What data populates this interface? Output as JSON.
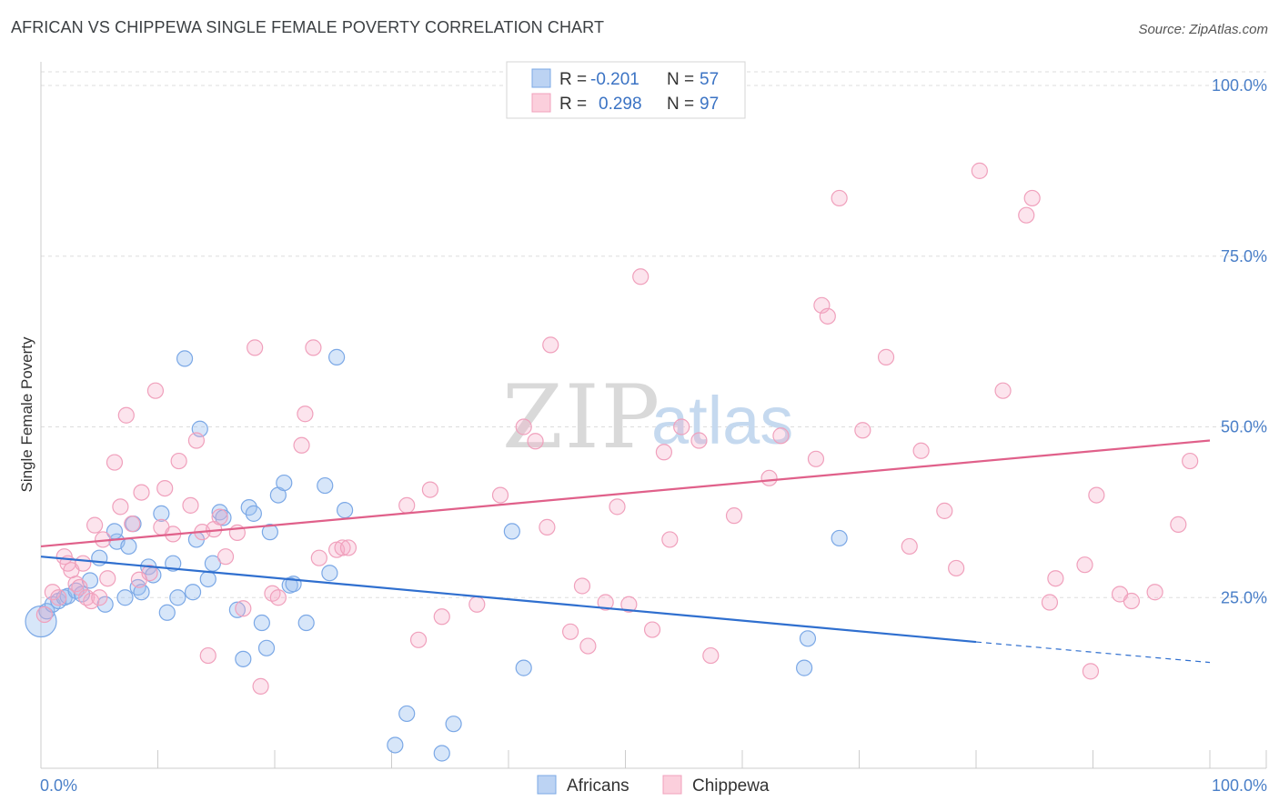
{
  "title": "AFRICAN VS CHIPPEWA SINGLE FEMALE POVERTY CORRELATION CHART",
  "source": "Source: ZipAtlas.com",
  "watermark": {
    "zip": "ZIP",
    "atlas": "atlas"
  },
  "legend": {
    "r_label": "R =",
    "n_label": "N =",
    "entries": [
      {
        "r": "-0.201",
        "n": "57"
      },
      {
        "r": "0.298",
        "n": "97"
      }
    ]
  },
  "chart_data": {
    "type": "scatter",
    "title": "AFRICAN VS CHIPPEWA SINGLE FEMALE POVERTY CORRELATION CHART",
    "xlabel": "",
    "ylabel": "Single Female Poverty",
    "xlim": [
      0,
      100
    ],
    "ylim": [
      0,
      100
    ],
    "x_tick_labels": [
      "0.0%",
      "100.0%"
    ],
    "y_tick_values": [
      25,
      50,
      75,
      100
    ],
    "y_tick_labels": [
      "25.0%",
      "50.0%",
      "75.0%",
      "100.0%"
    ],
    "colors": {
      "Africans": "#7ba8e6",
      "Chippewa": "#f0a0bc",
      "Africans_line": "#2f6fcf",
      "Chippewa_line": "#e0608a"
    },
    "series": [
      {
        "name": "Africans",
        "trend": {
          "x0": 0,
          "y0": 31.0,
          "x1": 80,
          "y1": 18.5,
          "dash_x1": 100,
          "dash_y1": 15.5
        },
        "points": [
          [
            0,
            21.5
          ],
          [
            0.5,
            23.0
          ],
          [
            1,
            24.0
          ],
          [
            1.5,
            24.5
          ],
          [
            2,
            25.0
          ],
          [
            2.3,
            25.2
          ],
          [
            3,
            26.0
          ],
          [
            3.5,
            25.5
          ],
          [
            4.2,
            27.5
          ],
          [
            5,
            30.8
          ],
          [
            5.5,
            24.0
          ],
          [
            6.5,
            33.2
          ],
          [
            6.3,
            34.7
          ],
          [
            7.2,
            25.0
          ],
          [
            7.5,
            32.5
          ],
          [
            7.9,
            35.8
          ],
          [
            8.3,
            26.5
          ],
          [
            8.6,
            25.8
          ],
          [
            9.2,
            29.5
          ],
          [
            9.6,
            28.3
          ],
          [
            10.3,
            37.3
          ],
          [
            10.8,
            22.8
          ],
          [
            11.3,
            30.0
          ],
          [
            11.7,
            25.0
          ],
          [
            12.3,
            60.0
          ],
          [
            13.0,
            25.8
          ],
          [
            13.3,
            33.5
          ],
          [
            13.6,
            49.7
          ],
          [
            14.3,
            27.7
          ],
          [
            14.7,
            30.0
          ],
          [
            15.3,
            37.5
          ],
          [
            15.6,
            36.7
          ],
          [
            16.8,
            23.2
          ],
          [
            17.3,
            16.0
          ],
          [
            17.8,
            38.2
          ],
          [
            18.2,
            37.3
          ],
          [
            18.9,
            21.3
          ],
          [
            19.3,
            17.6
          ],
          [
            19.6,
            34.6
          ],
          [
            20.3,
            40.0
          ],
          [
            20.8,
            41.8
          ],
          [
            21.3,
            26.8
          ],
          [
            21.6,
            27.0
          ],
          [
            22.7,
            21.3
          ],
          [
            24.3,
            41.4
          ],
          [
            24.7,
            28.6
          ],
          [
            25.3,
            60.2
          ],
          [
            26.0,
            37.8
          ],
          [
            30.3,
            3.4
          ],
          [
            31.3,
            8.0
          ],
          [
            34.3,
            2.2
          ],
          [
            35.3,
            6.5
          ],
          [
            40.3,
            34.7
          ],
          [
            41.3,
            14.7
          ],
          [
            65.3,
            14.7
          ],
          [
            65.6,
            19.0
          ],
          [
            68.3,
            33.7
          ]
        ]
      },
      {
        "name": "Chippewa",
        "trend": {
          "x0": 0,
          "y0": 32.5,
          "x1": 100,
          "y1": 48.0
        },
        "points": [
          [
            0.3,
            22.5
          ],
          [
            1,
            25.8
          ],
          [
            1.5,
            25.0
          ],
          [
            2,
            31.0
          ],
          [
            2.3,
            30.0
          ],
          [
            2.6,
            29.0
          ],
          [
            3,
            27.0
          ],
          [
            3.3,
            26.5
          ],
          [
            3.6,
            30.0
          ],
          [
            3.9,
            25.0
          ],
          [
            4.3,
            24.5
          ],
          [
            4.6,
            35.6
          ],
          [
            5,
            25.0
          ],
          [
            5.3,
            33.5
          ],
          [
            5.7,
            27.8
          ],
          [
            6.3,
            44.8
          ],
          [
            6.8,
            38.3
          ],
          [
            7.3,
            51.7
          ],
          [
            7.8,
            35.8
          ],
          [
            8.4,
            27.6
          ],
          [
            8.6,
            40.4
          ],
          [
            9.3,
            28.6
          ],
          [
            9.8,
            55.3
          ],
          [
            10.3,
            35.3
          ],
          [
            10.6,
            41.0
          ],
          [
            11.3,
            34.3
          ],
          [
            11.8,
            45.0
          ],
          [
            12.8,
            38.5
          ],
          [
            13.3,
            48.0
          ],
          [
            13.8,
            34.6
          ],
          [
            14.3,
            16.5
          ],
          [
            14.8,
            35.0
          ],
          [
            15.3,
            36.8
          ],
          [
            15.8,
            31.0
          ],
          [
            16.8,
            34.5
          ],
          [
            17.3,
            23.4
          ],
          [
            18.3,
            61.6
          ],
          [
            18.8,
            12.0
          ],
          [
            19.8,
            25.6
          ],
          [
            20.3,
            25.0
          ],
          [
            22.3,
            47.3
          ],
          [
            22.6,
            51.9
          ],
          [
            23.3,
            61.6
          ],
          [
            23.8,
            30.8
          ],
          [
            25.3,
            32.0
          ],
          [
            25.8,
            32.3
          ],
          [
            26.3,
            32.3
          ],
          [
            31.3,
            38.5
          ],
          [
            32.3,
            18.8
          ],
          [
            33.3,
            40.8
          ],
          [
            34.3,
            22.2
          ],
          [
            37.3,
            24.0
          ],
          [
            39.3,
            40.0
          ],
          [
            41.3,
            50.0
          ],
          [
            42.3,
            47.9
          ],
          [
            43.3,
            35.3
          ],
          [
            43.6,
            62.0
          ],
          [
            45.3,
            20.0
          ],
          [
            46.3,
            26.7
          ],
          [
            46.8,
            17.9
          ],
          [
            48.3,
            24.3
          ],
          [
            49.3,
            38.3
          ],
          [
            50.3,
            24.0
          ],
          [
            51.3,
            72.0
          ],
          [
            52.3,
            20.3
          ],
          [
            53.3,
            46.3
          ],
          [
            53.8,
            33.5
          ],
          [
            54.8,
            50.0
          ],
          [
            56.3,
            48.0
          ],
          [
            57.3,
            16.5
          ],
          [
            59.3,
            37.0
          ],
          [
            62.3,
            42.5
          ],
          [
            63.3,
            48.7
          ],
          [
            66.3,
            45.3
          ],
          [
            66.8,
            67.8
          ],
          [
            67.3,
            66.2
          ],
          [
            68.3,
            83.5
          ],
          [
            70.3,
            49.5
          ],
          [
            72.3,
            60.2
          ],
          [
            74.3,
            32.5
          ],
          [
            75.3,
            46.5
          ],
          [
            77.3,
            37.7
          ],
          [
            78.3,
            29.3
          ],
          [
            80.3,
            87.5
          ],
          [
            82.3,
            55.3
          ],
          [
            84.3,
            81.0
          ],
          [
            84.8,
            83.5
          ],
          [
            86.3,
            24.3
          ],
          [
            86.8,
            27.8
          ],
          [
            89.3,
            29.8
          ],
          [
            89.8,
            14.2
          ],
          [
            90.3,
            40.0
          ],
          [
            92.3,
            25.5
          ],
          [
            93.3,
            24.5
          ],
          [
            95.3,
            25.8
          ],
          [
            97.3,
            35.7
          ],
          [
            98.3,
            45.0
          ]
        ]
      }
    ]
  }
}
